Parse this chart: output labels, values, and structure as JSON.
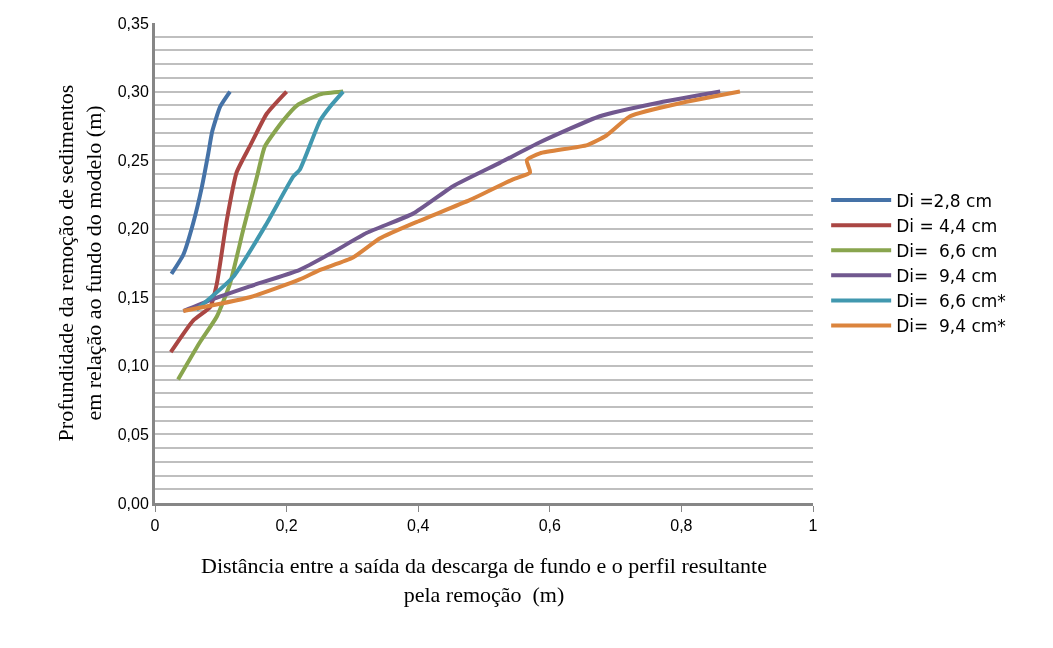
{
  "chart_data": {
    "type": "line",
    "xlabel": "Distância entre a saída da descarga de fundo e o perfil resultante\npela remoção  (m)",
    "ylabel": "Profundidade da remoção de sedimentos\nem relação ao fundo do modelo (m)",
    "xlim": [
      0,
      1
    ],
    "xticks": [
      {
        "value": 0,
        "label": "0"
      },
      {
        "value": 0.2,
        "label": "0,2"
      },
      {
        "value": 0.4,
        "label": "0,4"
      },
      {
        "value": 0.6,
        "label": "0,6"
      },
      {
        "value": 0.8,
        "label": "0,8"
      },
      {
        "value": 1,
        "label": "1"
      }
    ],
    "ylim": [
      0,
      0.35
    ],
    "yticks": [
      {
        "value": 0,
        "label": "0,00"
      },
      {
        "value": 0.01,
        "label": null
      },
      {
        "value": 0.02,
        "label": null
      },
      {
        "value": 0.03,
        "label": null
      },
      {
        "value": 0.04,
        "label": null
      },
      {
        "value": 0.05,
        "label": "0,05"
      },
      {
        "value": 0.06,
        "label": null
      },
      {
        "value": 0.07,
        "label": null
      },
      {
        "value": 0.08,
        "label": null
      },
      {
        "value": 0.09,
        "label": null
      },
      {
        "value": 0.1,
        "label": "0,10"
      },
      {
        "value": 0.11,
        "label": null
      },
      {
        "value": 0.12,
        "label": null
      },
      {
        "value": 0.13,
        "label": null
      },
      {
        "value": 0.14,
        "label": null
      },
      {
        "value": 0.15,
        "label": "0,15"
      },
      {
        "value": 0.16,
        "label": null
      },
      {
        "value": 0.17,
        "label": null
      },
      {
        "value": 0.18,
        "label": null
      },
      {
        "value": 0.19,
        "label": null
      },
      {
        "value": 0.2,
        "label": "0,20"
      },
      {
        "value": 0.21,
        "label": null
      },
      {
        "value": 0.22,
        "label": null
      },
      {
        "value": 0.23,
        "label": null
      },
      {
        "value": 0.24,
        "label": null
      },
      {
        "value": 0.25,
        "label": "0,25"
      },
      {
        "value": 0.26,
        "label": null
      },
      {
        "value": 0.27,
        "label": null
      },
      {
        "value": 0.28,
        "label": null
      },
      {
        "value": 0.29,
        "label": null
      },
      {
        "value": 0.3,
        "label": "0,30"
      },
      {
        "value": 0.31,
        "label": null
      },
      {
        "value": 0.32,
        "label": null
      },
      {
        "value": 0.33,
        "label": null
      },
      {
        "value": 0.34,
        "label": null
      },
      {
        "value": 0.35,
        "label": "0,35"
      }
    ],
    "grid": "y",
    "legend": "right",
    "marker": "none",
    "line_style": "solid",
    "series": [
      {
        "name": "Di =2,8 cm",
        "color": "#4572a7",
        "x": [
          0.025,
          0.043,
          0.058,
          0.071,
          0.081,
          0.087,
          0.099,
          0.114
        ],
        "values": [
          0.167,
          0.181,
          0.204,
          0.23,
          0.255,
          0.271,
          0.289,
          0.3
        ]
      },
      {
        "name": "Di = 4,4 cm",
        "color": "#aa4643",
        "x": [
          0.024,
          0.058,
          0.084,
          0.094,
          0.109,
          0.124,
          0.144,
          0.17,
          0.2
        ],
        "values": [
          0.11,
          0.133,
          0.143,
          0.16,
          0.206,
          0.241,
          0.26,
          0.284,
          0.3
        ]
      },
      {
        "name": "Di=  6,6 cm",
        "color": "#89a54e",
        "x": [
          0.035,
          0.068,
          0.094,
          0.114,
          0.134,
          0.155,
          0.167,
          0.195,
          0.216,
          0.251,
          0.286
        ],
        "values": [
          0.09,
          0.117,
          0.136,
          0.16,
          0.199,
          0.238,
          0.26,
          0.279,
          0.29,
          0.298,
          0.3
        ]
      },
      {
        "name": "Di=  9,4 cm",
        "color": "#71588f",
        "x": [
          0.043,
          0.084,
          0.144,
          0.22,
          0.271,
          0.322,
          0.392,
          0.453,
          0.524,
          0.585,
          0.676,
          0.767,
          0.859
        ],
        "values": [
          0.14,
          0.148,
          0.158,
          0.17,
          0.183,
          0.197,
          0.211,
          0.231,
          0.248,
          0.263,
          0.282,
          0.292,
          0.3
        ]
      },
      {
        "name": "Di=  6,6 cm*",
        "color": "#4198af",
        "x": [
          0.063,
          0.119,
          0.17,
          0.21,
          0.22,
          0.251,
          0.266,
          0.286
        ],
        "values": [
          0.141,
          0.165,
          0.204,
          0.238,
          0.243,
          0.279,
          0.289,
          0.3
        ]
      },
      {
        "name": "Di=  9,4 cm*",
        "color": "#db843d",
        "x": [
          0.043,
          0.144,
          0.22,
          0.251,
          0.301,
          0.342,
          0.398,
          0.479,
          0.544,
          0.57,
          0.565,
          0.585,
          0.657,
          0.686,
          0.722,
          0.803,
          0.889
        ],
        "values": [
          0.14,
          0.15,
          0.163,
          0.17,
          0.179,
          0.193,
          0.205,
          0.221,
          0.236,
          0.241,
          0.25,
          0.255,
          0.261,
          0.268,
          0.282,
          0.292,
          0.3
        ]
      }
    ]
  }
}
